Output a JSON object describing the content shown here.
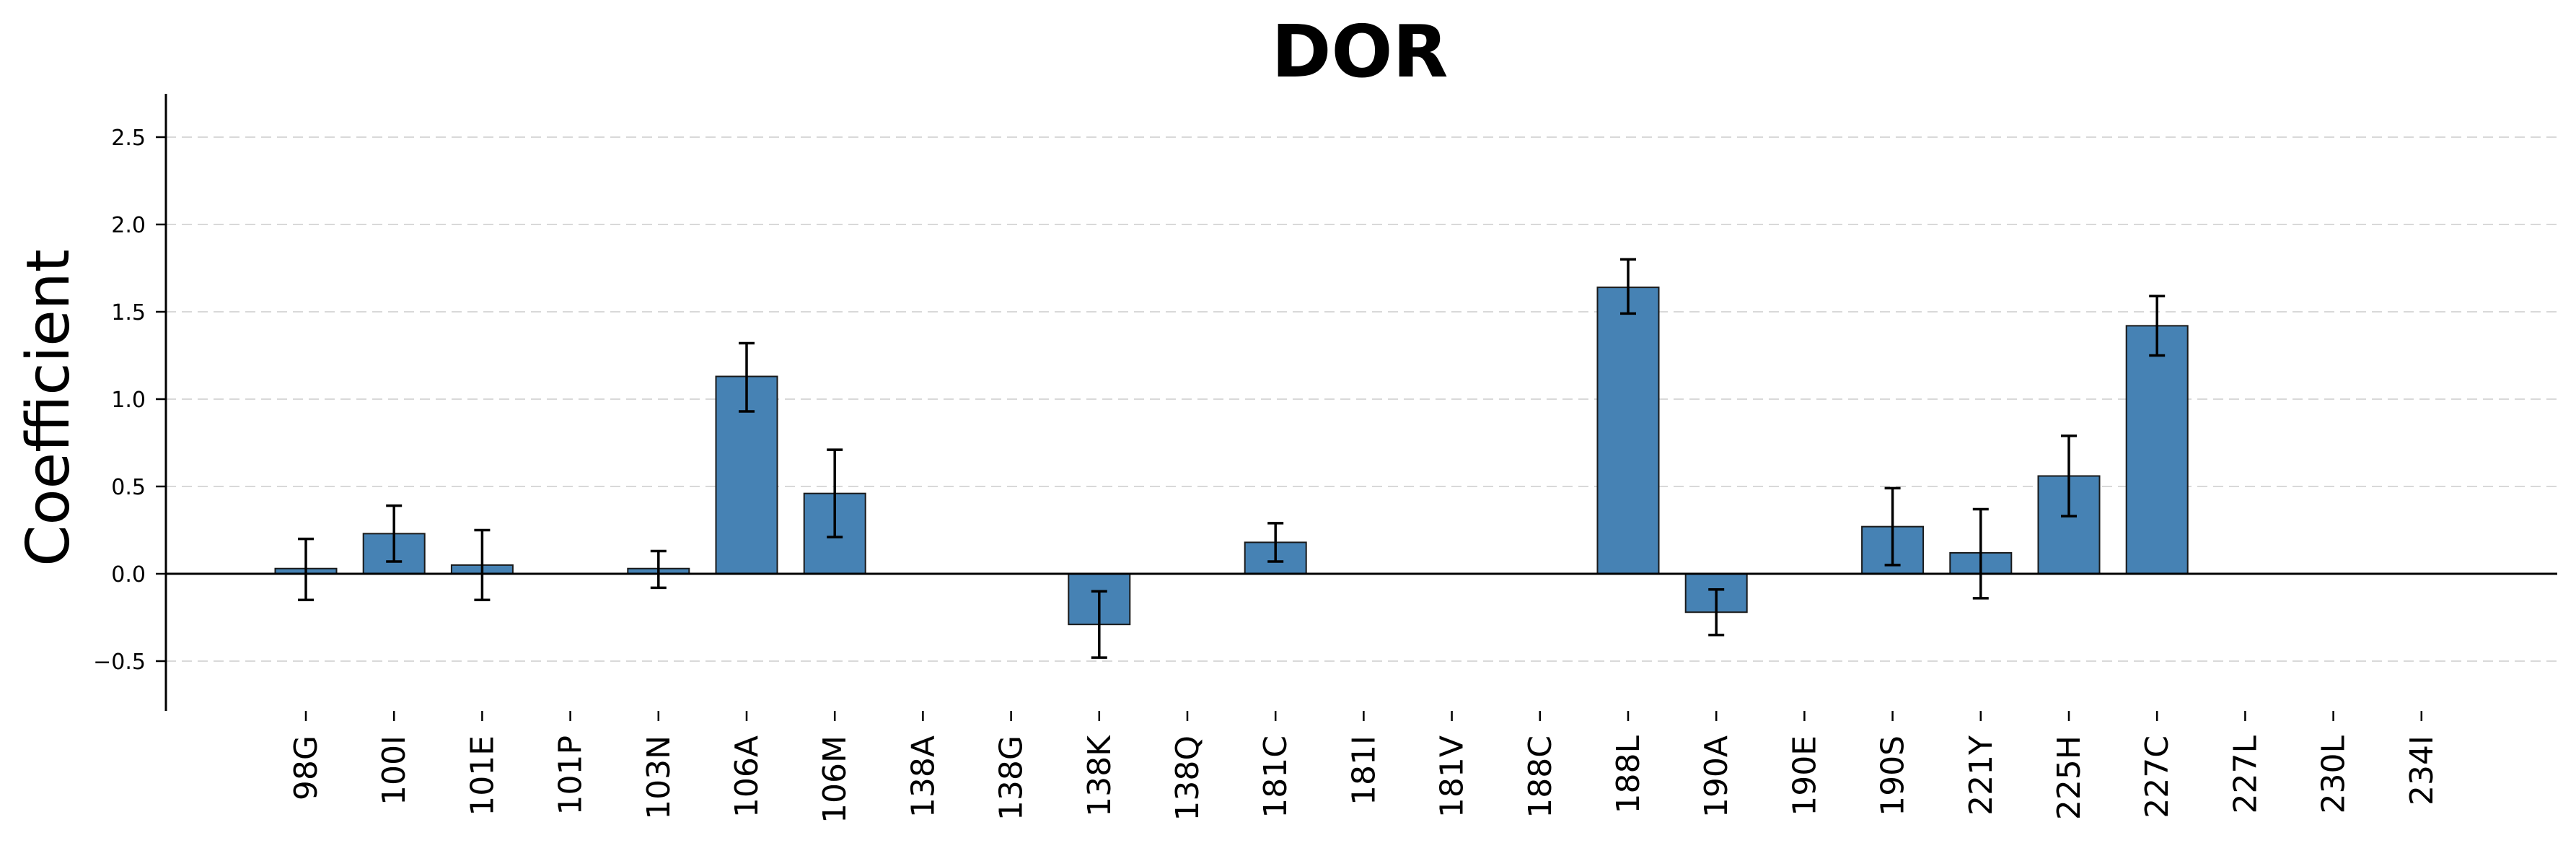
{
  "chart_data": {
    "type": "bar",
    "title": "DOR",
    "xlabel": "",
    "ylabel": "Coefficient",
    "ylim": [
      -0.78,
      2.75
    ],
    "yticks": [
      -0.5,
      0.0,
      0.5,
      1.0,
      1.5,
      2.0,
      2.5
    ],
    "ytick_labels": [
      "−0.5",
      "0.0",
      "0.5",
      "1.0",
      "1.5",
      "2.0",
      "2.5"
    ],
    "grid": "horizontal dashed",
    "bar_color": "#4682b4",
    "categories": [
      "98G",
      "100I",
      "101E",
      "101P",
      "103N",
      "106A",
      "106M",
      "138A",
      "138G",
      "138K",
      "138Q",
      "181C",
      "181I",
      "181V",
      "188C",
      "188L",
      "190A",
      "190E",
      "190S",
      "221Y",
      "225H",
      "227C",
      "227L",
      "230L",
      "234I"
    ],
    "values": [
      0.03,
      0.23,
      0.05,
      0.0,
      0.03,
      1.13,
      0.46,
      0.0,
      0.0,
      -0.29,
      0.0,
      0.18,
      0.0,
      0.0,
      0.0,
      1.64,
      -0.22,
      0.0,
      0.27,
      0.12,
      0.56,
      1.42,
      0.0,
      0.0,
      0.0
    ],
    "error_low": [
      -0.15,
      0.07,
      -0.15,
      null,
      -0.08,
      0.93,
      0.21,
      null,
      null,
      -0.48,
      null,
      0.07,
      null,
      null,
      null,
      1.49,
      -0.35,
      null,
      0.05,
      -0.14,
      0.33,
      1.25,
      null,
      null,
      null
    ],
    "error_high": [
      0.2,
      0.39,
      0.25,
      null,
      0.13,
      1.32,
      0.71,
      null,
      null,
      -0.1,
      null,
      0.29,
      null,
      null,
      null,
      1.8,
      -0.09,
      null,
      0.49,
      0.37,
      0.79,
      1.59,
      null,
      null,
      null
    ]
  }
}
